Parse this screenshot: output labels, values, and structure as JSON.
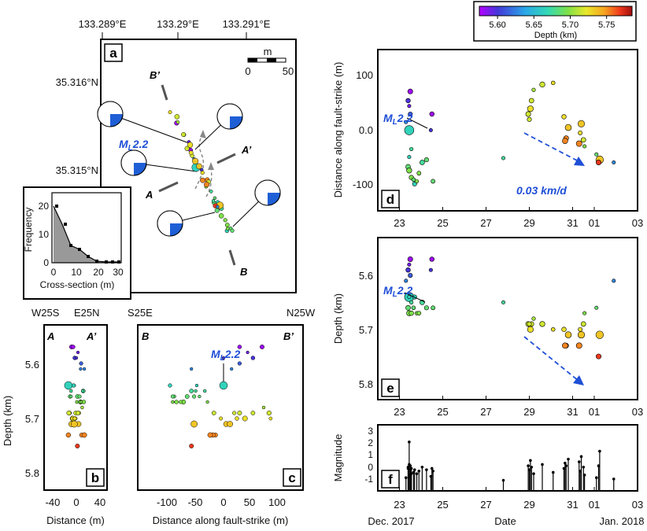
{
  "colorbar": {
    "ticks": [
      "5.60",
      "5.65",
      "5.70",
      "5.75"
    ],
    "tick_values": [
      5.6,
      5.65,
      5.7,
      5.75
    ],
    "range": [
      5.575,
      5.785
    ],
    "label": "Depth (km)",
    "colors": [
      "#b400ff",
      "#4338d8",
      "#2aa7e8",
      "#33d9b4",
      "#7ee048",
      "#e8e82a",
      "#f6a321",
      "#ee3a1c",
      "#a00e0e"
    ]
  },
  "panel_a": {
    "letter": "a",
    "top_lon_ticks": [
      "133.289°E",
      "133.29°E",
      "133.291°E"
    ],
    "lat_ticks": [
      "35.316°N",
      "35.315°N"
    ],
    "scale_unit": "m",
    "scale_ticks": [
      "0",
      "50"
    ],
    "labels": {
      "A": "A",
      "A_prime": "A’",
      "B": "B",
      "B_prime": "B’"
    },
    "mainshock_label": "M",
    "mainshock_sub": "L",
    "mainshock_mag": "2.2"
  },
  "inset": {
    "ylabel": "Frequency",
    "xlabel": "Cross-section (m)",
    "xticks": [
      "0",
      "10",
      "20",
      "30"
    ],
    "yticks": [
      "0",
      "10",
      "20"
    ]
  },
  "panel_b": {
    "letter": "b",
    "left_dir": "W25S",
    "right_dir": "E25N",
    "sec_left": "A",
    "sec_right": "A’",
    "ylabel": "Depth (km)",
    "xlabel": "Distance (m)",
    "xticks": [
      "-40",
      "0",
      "40"
    ],
    "yticks": [
      "5.6",
      "5.7",
      "5.8"
    ]
  },
  "panel_c": {
    "letter": "c",
    "left_dir": "S25E",
    "right_dir": "N25W",
    "sec_left": "B",
    "sec_right": "B’",
    "xlabel": "Distance along fault-strike (m)",
    "xticks": [
      "-100",
      "-50",
      "0",
      "50",
      "100"
    ]
  },
  "panel_d": {
    "letter": "d",
    "ylabel": "Distance along fault-strike (m)",
    "yticks": [
      "100",
      "0.0",
      "-100"
    ],
    "rate_label": "0.03 km/d"
  },
  "panel_e": {
    "letter": "e",
    "ylabel": "Depth (km)",
    "yticks": [
      "5.6",
      "5.7",
      "5.8"
    ]
  },
  "panel_f": {
    "letter": "f",
    "ylabel": "Magnitude",
    "yticks": [
      "3",
      "2",
      "1",
      "0",
      "-1"
    ]
  },
  "time_axis": {
    "ticks": [
      "23",
      "25",
      "27",
      "29",
      "31",
      "01",
      "03"
    ],
    "xlabel": "Date",
    "start_label": "Dec. 2017",
    "end_label": "Jan. 2018"
  },
  "chart_data": {
    "type": "scatter",
    "series": [
      {
        "x_key": "day",
        "x_units": "days from 2017-12-22 00:00",
        "points_depth_km_vs_time_and_strike": [
          {
            "day": 1.45,
            "strike": 0,
            "depth": 5.65,
            "mag": 2.2
          },
          {
            "day": 1.5,
            "strike": 72,
            "depth": 5.58,
            "mag": 0.4
          },
          {
            "day": 1.4,
            "strike": 55,
            "depth": 5.6,
            "mag": 0.2
          },
          {
            "day": 1.45,
            "strike": 45,
            "depth": 5.59,
            "mag": -0.3
          },
          {
            "day": 1.5,
            "strike": 30,
            "depth": 5.61,
            "mag": 0.1
          },
          {
            "day": 1.3,
            "strike": 15,
            "depth": 5.62,
            "mag": -0.5
          },
          {
            "day": 1.55,
            "strike": -35,
            "depth": 5.66,
            "mag": -0.2
          },
          {
            "day": 1.45,
            "strike": -50,
            "depth": 5.65,
            "mag": -0.4
          },
          {
            "day": 1.4,
            "strike": -68,
            "depth": 5.67,
            "mag": 0.3
          },
          {
            "day": 1.45,
            "strike": -75,
            "depth": 5.68,
            "mag": 0.5
          },
          {
            "day": 1.55,
            "strike": -88,
            "depth": 5.68,
            "mag": 0.2
          },
          {
            "day": 1.65,
            "strike": -92,
            "depth": 5.67,
            "mag": -0.1
          },
          {
            "day": 1.7,
            "strike": -100,
            "depth": 5.65,
            "mag": 0.1
          },
          {
            "day": 1.8,
            "strike": -95,
            "depth": 5.68,
            "mag": -0.2
          },
          {
            "day": 1.9,
            "strike": -80,
            "depth": 5.68,
            "mag": 0.0
          },
          {
            "day": 2.05,
            "strike": -60,
            "depth": 5.66,
            "mag": 0.3
          },
          {
            "day": 2.25,
            "strike": -55,
            "depth": 5.67,
            "mag": 0.1
          },
          {
            "day": 2.5,
            "strike": 30,
            "depth": 5.58,
            "mag": 0.2
          },
          {
            "day": 2.45,
            "strike": 0,
            "depth": 5.6,
            "mag": -0.4
          },
          {
            "day": 2.55,
            "strike": -95,
            "depth": 5.67,
            "mag": 0.0
          },
          {
            "day": 5.8,
            "strike": -52,
            "depth": 5.66,
            "mag": -0.7
          },
          {
            "day": 7.1,
            "strike": 55,
            "depth": 5.7,
            "mag": 0.3
          },
          {
            "day": 7.05,
            "strike": 40,
            "depth": 5.71,
            "mag": 0.8
          },
          {
            "day": 6.95,
            "strike": 30,
            "depth": 5.7,
            "mag": 0.4
          },
          {
            "day": 7.0,
            "strike": 20,
            "depth": 5.7,
            "mag": 0.1
          },
          {
            "day": 7.2,
            "strike": 75,
            "depth": 5.69,
            "mag": -0.2
          },
          {
            "day": 7.6,
            "strike": 85,
            "depth": 5.7,
            "mag": 0.5
          },
          {
            "day": 8.1,
            "strike": 88,
            "depth": 5.71,
            "mag": -0.1
          },
          {
            "day": 8.6,
            "strike": 25,
            "depth": 5.71,
            "mag": 0.2
          },
          {
            "day": 8.8,
            "strike": 5,
            "depth": 5.72,
            "mag": 0.9
          },
          {
            "day": 8.7,
            "strike": -15,
            "depth": 5.74,
            "mag": 0.4
          },
          {
            "day": 8.65,
            "strike": -20,
            "depth": 5.74,
            "mag": 0.6
          },
          {
            "day": 9.4,
            "strike": 12,
            "depth": 5.72,
            "mag": 1.1
          },
          {
            "day": 9.35,
            "strike": -5,
            "depth": 5.71,
            "mag": 0.0
          },
          {
            "day": 9.5,
            "strike": -18,
            "depth": 5.7,
            "mag": 0.3
          },
          {
            "day": 9.55,
            "strike": -30,
            "depth": 5.68,
            "mag": -0.3
          },
          {
            "day": 9.3,
            "strike": -25,
            "depth": 5.74,
            "mag": 0.7
          },
          {
            "day": 10.1,
            "strike": -45,
            "depth": 5.67,
            "mag": -0.5
          },
          {
            "day": 10.25,
            "strike": -55,
            "depth": 5.72,
            "mag": 1.5
          },
          {
            "day": 10.2,
            "strike": -60,
            "depth": 5.76,
            "mag": 0.4
          },
          {
            "day": 10.9,
            "strike": -60,
            "depth": 5.62,
            "mag": -0.6
          }
        ]
      }
    ],
    "x_range_days": [
      0,
      12
    ],
    "strike_range_m": [
      -150,
      150
    ],
    "depth_range_km": [
      5.54,
      5.84
    ],
    "magnitude_range": [
      -1.5,
      3.5
    ],
    "rate_arrow_km_per_day": 0.03
  }
}
